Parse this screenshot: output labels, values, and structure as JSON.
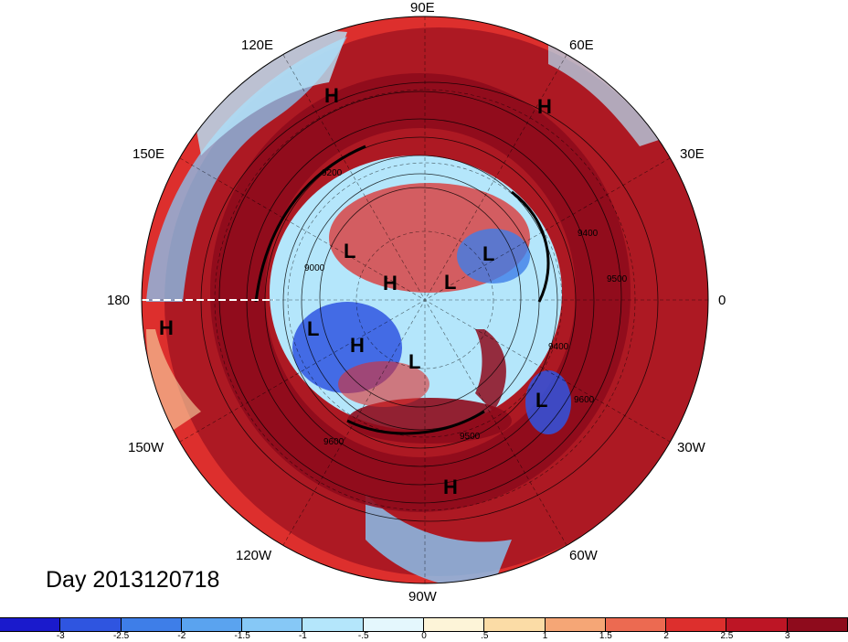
{
  "title": "Day 2013120718",
  "longitude_labels": [
    "90E",
    "60E",
    "30E",
    "0",
    "30W",
    "60W",
    "90W",
    "120W",
    "150W",
    "180",
    "150E",
    "120E"
  ],
  "pressure_systems": [
    {
      "type": "H",
      "lon_label": "near 110E"
    },
    {
      "type": "H",
      "lon_label": "near 50E"
    },
    {
      "type": "H",
      "lon_label": "near 170W"
    },
    {
      "type": "L",
      "lon_label": "polar"
    },
    {
      "type": "H",
      "lon_label": "polar"
    },
    {
      "type": "L",
      "lon_label": "polar"
    },
    {
      "type": "L",
      "lon_label": "polar"
    },
    {
      "type": "L",
      "lon_label": "polar"
    },
    {
      "type": "H",
      "lon_label": "polar"
    },
    {
      "type": "L",
      "lon_label": "polar"
    },
    {
      "type": "L",
      "lon_label": "near 40W"
    },
    {
      "type": "H",
      "lon_label": "near 80W"
    }
  ],
  "contour_labels": [
    "9200",
    "9000",
    "9400",
    "9500",
    "9600",
    "9500",
    "9600",
    "9400",
    "9600"
  ],
  "colorbar": {
    "ticks": [
      "-3",
      "-2.5",
      "-2",
      "-1.5",
      "-1",
      "-.5",
      "0",
      ".5",
      "1",
      "1.5",
      "2",
      "2.5",
      "3"
    ],
    "colors": [
      "#1a1acc",
      "#2f55e0",
      "#3e7ee8",
      "#5aa3ef",
      "#86c8f6",
      "#b4e6fb",
      "#e4f7fd",
      "#fdf4d8",
      "#fbdca6",
      "#f5a676",
      "#ec6a51",
      "#dd2f2d",
      "#bd1525",
      "#8e0b1c"
    ]
  }
}
